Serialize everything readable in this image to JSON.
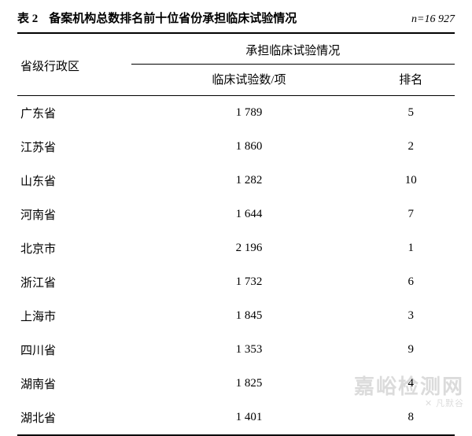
{
  "header": {
    "table_label": "表 2",
    "title": "备案机构总数排名前十位省份承担临床试验情况",
    "n_prefix": "n",
    "n_value": "=16 927"
  },
  "columns": {
    "province": "省级行政区",
    "group": "承担临床试验情况",
    "trials": "临床试验数/项",
    "rank": "排名"
  },
  "rows": [
    {
      "province": "广东省",
      "trials": "1 789",
      "rank": "5"
    },
    {
      "province": "江苏省",
      "trials": "1 860",
      "rank": "2"
    },
    {
      "province": "山东省",
      "trials": "1 282",
      "rank": "10"
    },
    {
      "province": "河南省",
      "trials": "1 644",
      "rank": "7"
    },
    {
      "province": "北京市",
      "trials": "2 196",
      "rank": "1"
    },
    {
      "province": "浙江省",
      "trials": "1 732",
      "rank": "6"
    },
    {
      "province": "上海市",
      "trials": "1 845",
      "rank": "3"
    },
    {
      "province": "四川省",
      "trials": "1 353",
      "rank": "9"
    },
    {
      "province": "湖南省",
      "trials": "1 825",
      "rank": "4"
    },
    {
      "province": "湖北省",
      "trials": "1 401",
      "rank": "8"
    }
  ],
  "watermark": {
    "big": "嘉峪检测网",
    "small": "✕ 凡默谷"
  },
  "style": {
    "font_family": "SimSun",
    "font_size_body": 15,
    "font_size_header": 15,
    "rule_thick": 2,
    "rule_thin": 1,
    "background": "#ffffff",
    "text_color": "#000000",
    "watermark_color": "rgba(0,0,0,0.14)"
  }
}
